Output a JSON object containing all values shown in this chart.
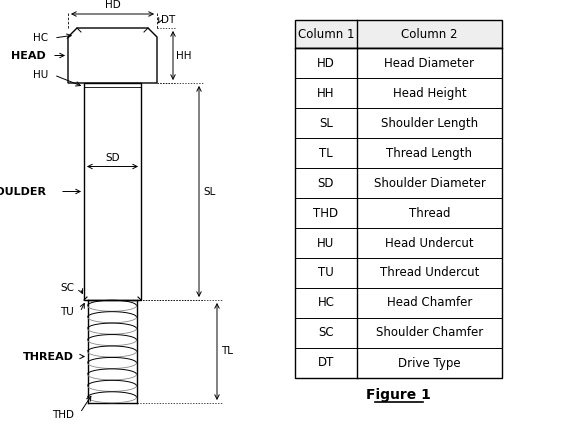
{
  "title": "Figure 1",
  "table_headers": [
    "Column 1",
    "Column 2"
  ],
  "table_rows": [
    [
      "HD",
      "Head Diameter"
    ],
    [
      "HH",
      "Head Height"
    ],
    [
      "SL",
      "Shoulder Length"
    ],
    [
      "TL",
      "Thread Length"
    ],
    [
      "SD",
      "Shoulder Diameter"
    ],
    [
      "THD",
      "Thread"
    ],
    [
      "HU",
      "Head Undercut"
    ],
    [
      "TU",
      "Thread Undercut"
    ],
    [
      "HC",
      "Head Chamfer"
    ],
    [
      "SC",
      "Shoulder Chamfer"
    ],
    [
      "DT",
      "Drive Type"
    ]
  ],
  "bg_color": "#ffffff",
  "line_color": "#000000"
}
